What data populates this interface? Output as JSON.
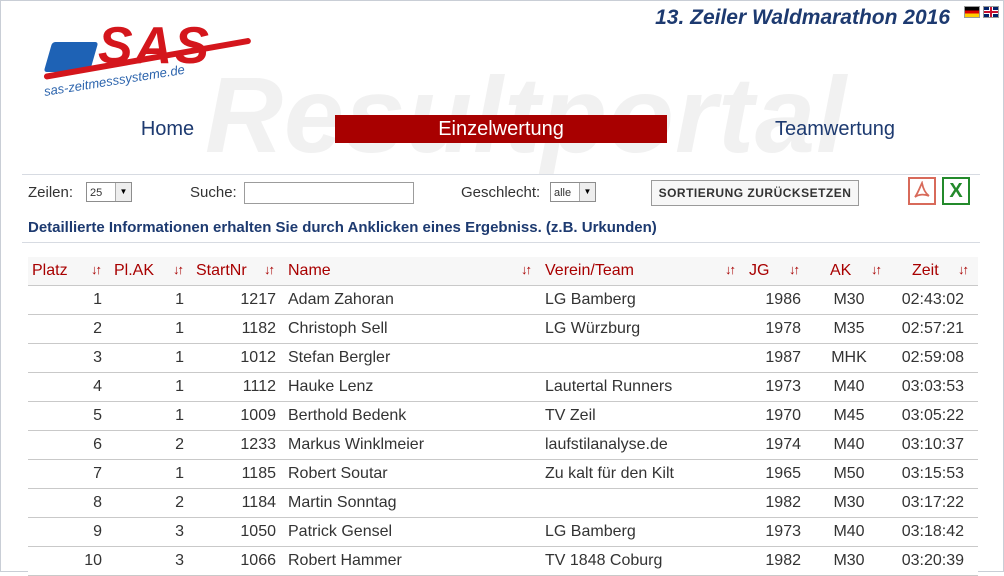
{
  "watermark": "Resultportal",
  "logo": {
    "text": "SAS",
    "subtitle": "sas-zeitmesssysteme.de"
  },
  "event_title": "13. Zeiler Waldmarathon 2016",
  "flags": [
    "flag-de",
    "flag-en"
  ],
  "nav": {
    "home": "Home",
    "einzel": "Einzelwertung",
    "team": "Teamwertung"
  },
  "controls": {
    "rows_label": "Zeilen:",
    "rows_value": "25",
    "search_label": "Suche:",
    "search_value": "",
    "gender_label": "Geschlecht:",
    "gender_value": "alle",
    "reset_label": "SORTIERUNG ZURÜCKSETZEN",
    "pdf_icon": "pdf-export-icon",
    "xls_icon": "excel-export-icon",
    "xls_glyph": "X"
  },
  "info": "Detaillierte Informationen erhalten Sie durch Anklicken eines Ergebniss. (z.B. Urkunden)",
  "sort_glyph": "↓↑",
  "columns": {
    "platz": "Platz",
    "plak": "Pl.AK",
    "startnr": "StartNr",
    "name": "Name",
    "verein": "Verein/Team",
    "jg": "JG",
    "ak": "AK",
    "zeit": "Zeit"
  },
  "rows": [
    {
      "platz": "1",
      "plak": "1",
      "startnr": "1217",
      "name": "Adam Zahoran",
      "verein": "LG Bamberg",
      "jg": "1986",
      "ak": "M30",
      "zeit": "02:43:02"
    },
    {
      "platz": "2",
      "plak": "1",
      "startnr": "1182",
      "name": "Christoph Sell",
      "verein": "LG Würzburg",
      "jg": "1978",
      "ak": "M35",
      "zeit": "02:57:21"
    },
    {
      "platz": "3",
      "plak": "1",
      "startnr": "1012",
      "name": "Stefan Bergler",
      "verein": "",
      "jg": "1987",
      "ak": "MHK",
      "zeit": "02:59:08"
    },
    {
      "platz": "4",
      "plak": "1",
      "startnr": "1112",
      "name": "Hauke Lenz",
      "verein": "Lautertal Runners",
      "jg": "1973",
      "ak": "M40",
      "zeit": "03:03:53"
    },
    {
      "platz": "5",
      "plak": "1",
      "startnr": "1009",
      "name": "Berthold Bedenk",
      "verein": "TV Zeil",
      "jg": "1970",
      "ak": "M45",
      "zeit": "03:05:22"
    },
    {
      "platz": "6",
      "plak": "2",
      "startnr": "1233",
      "name": "Markus Winklmeier",
      "verein": "laufstilanalyse.de",
      "jg": "1974",
      "ak": "M40",
      "zeit": "03:10:37"
    },
    {
      "platz": "7",
      "plak": "1",
      "startnr": "1185",
      "name": "Robert Soutar",
      "verein": "Zu kalt für den Kilt",
      "jg": "1965",
      "ak": "M50",
      "zeit": "03:15:53"
    },
    {
      "platz": "8",
      "plak": "2",
      "startnr": "1184",
      "name": "Martin Sonntag",
      "verein": "",
      "jg": "1982",
      "ak": "M30",
      "zeit": "03:17:22"
    },
    {
      "platz": "9",
      "plak": "3",
      "startnr": "1050",
      "name": "Patrick Gensel",
      "verein": "LG Bamberg",
      "jg": "1973",
      "ak": "M40",
      "zeit": "03:18:42"
    },
    {
      "platz": "10",
      "plak": "3",
      "startnr": "1066",
      "name": "Robert Hammer",
      "verein": "TV 1848 Coburg",
      "jg": "1982",
      "ak": "M30",
      "zeit": "03:20:39"
    }
  ]
}
